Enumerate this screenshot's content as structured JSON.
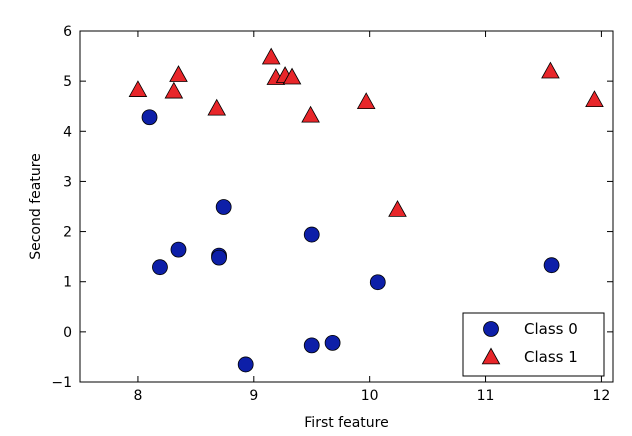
{
  "chart_data": {
    "type": "scatter",
    "xlabel": "First feature",
    "ylabel": "Second feature",
    "xlim": [
      7.5,
      12.1
    ],
    "ylim": [
      -1,
      6
    ],
    "xticks": [
      "8",
      "9",
      "10",
      "11",
      "12"
    ],
    "yticks": [
      "−1",
      "0",
      "1",
      "2",
      "3",
      "4",
      "5",
      "6"
    ],
    "xtick_values": [
      8,
      9,
      10,
      11,
      12
    ],
    "ytick_values": [
      -1,
      0,
      1,
      2,
      3,
      4,
      5,
      6
    ],
    "grid": false,
    "legend_position": "lower-right",
    "series": [
      {
        "name": "Class 0",
        "marker": "circle",
        "color": "#0d1fa8",
        "points": [
          {
            "x": 8.1,
            "y": 4.28
          },
          {
            "x": 8.19,
            "y": 1.29
          },
          {
            "x": 8.35,
            "y": 1.64
          },
          {
            "x": 8.7,
            "y": 1.52
          },
          {
            "x": 8.7,
            "y": 1.48
          },
          {
            "x": 8.74,
            "y": 2.49
          },
          {
            "x": 8.93,
            "y": -0.65
          },
          {
            "x": 9.5,
            "y": 1.94
          },
          {
            "x": 9.5,
            "y": -0.27
          },
          {
            "x": 9.68,
            "y": -0.22
          },
          {
            "x": 10.07,
            "y": 0.99
          },
          {
            "x": 11.57,
            "y": 1.33
          }
        ]
      },
      {
        "name": "Class 1",
        "marker": "triangle",
        "color": "#e8262a",
        "points": [
          {
            "x": 8.0,
            "y": 4.83
          },
          {
            "x": 8.31,
            "y": 4.8
          },
          {
            "x": 8.35,
            "y": 5.13
          },
          {
            "x": 8.68,
            "y": 4.46
          },
          {
            "x": 9.15,
            "y": 5.48
          },
          {
            "x": 9.19,
            "y": 5.07
          },
          {
            "x": 9.27,
            "y": 5.11
          },
          {
            "x": 9.33,
            "y": 5.08
          },
          {
            "x": 9.49,
            "y": 4.32
          },
          {
            "x": 9.97,
            "y": 4.59
          },
          {
            "x": 10.24,
            "y": 2.44
          },
          {
            "x": 11.56,
            "y": 5.2
          },
          {
            "x": 11.94,
            "y": 4.63
          }
        ]
      }
    ]
  }
}
